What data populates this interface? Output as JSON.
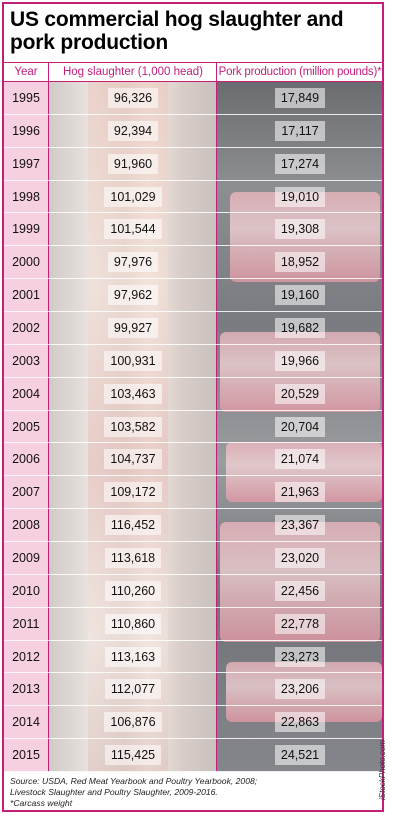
{
  "title": "US commercial hog slaughter and pork production",
  "header": {
    "year": "Year",
    "slaughter": "Hog slaughter (1,000 head)",
    "pork": "Pork production (million pounds)*"
  },
  "chart_data": {
    "type": "table",
    "title": "US commercial hog slaughter and pork production",
    "columns": [
      "Year",
      "Hog slaughter (1,000 head)",
      "Pork production (million pounds)*"
    ],
    "rows": [
      [
        "1995",
        "96,326",
        "17,849"
      ],
      [
        "1996",
        "92,394",
        "17,117"
      ],
      [
        "1997",
        "91,960",
        "17,274"
      ],
      [
        "1998",
        "101,029",
        "19,010"
      ],
      [
        "1999",
        "101,544",
        "19,308"
      ],
      [
        "2000",
        "97,976",
        "18,952"
      ],
      [
        "2001",
        "97,962",
        "19,160"
      ],
      [
        "2002",
        "99,927",
        "19,682"
      ],
      [
        "2003",
        "100,931",
        "19,966"
      ],
      [
        "2004",
        "103,463",
        "20,529"
      ],
      [
        "2005",
        "103,582",
        "20,704"
      ],
      [
        "2006",
        "104,737",
        "21,074"
      ],
      [
        "2007",
        "109,172",
        "21,963"
      ],
      [
        "2008",
        "116,452",
        "23,367"
      ],
      [
        "2009",
        "113,618",
        "23,020"
      ],
      [
        "2010",
        "110,260",
        "22,456"
      ],
      [
        "2011",
        "110,860",
        "22,778"
      ],
      [
        "2012",
        "113,163",
        "23,273"
      ],
      [
        "2013",
        "112,077",
        "23,206"
      ],
      [
        "2014",
        "106,876",
        "22,863"
      ],
      [
        "2015",
        "115,425",
        "24,521"
      ]
    ]
  },
  "footer": {
    "source_line1": "Source: USDA, Red Meat Yearbook and Poultry Yearbook, 2008;",
    "source_line2": "Livestock Slaughter and Poultry Slaughter, 2009-2016.",
    "note": "*Carcass weight"
  },
  "credit": "iStockPhoto.com",
  "colors": {
    "accent": "#c21e7a",
    "year_column": "#f6cfe0"
  }
}
